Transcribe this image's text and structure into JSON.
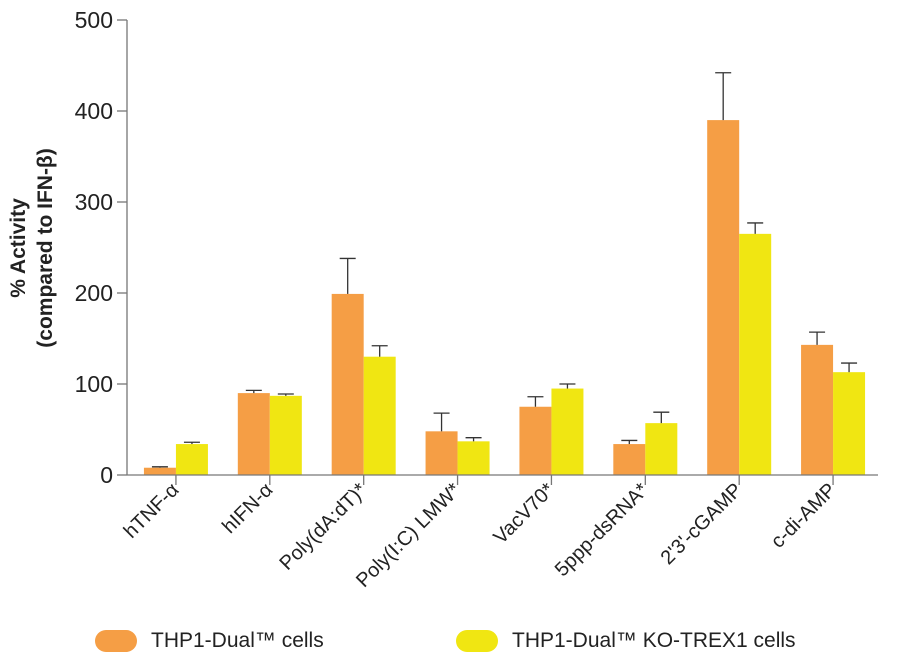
{
  "chart_data": {
    "type": "bar",
    "title": "",
    "ylabel_line1": "% Activity",
    "ylabel_line2": "(compared to IFN-β)",
    "xlabel": "",
    "ylim": [
      0,
      500
    ],
    "yticks": [
      0,
      100,
      200,
      300,
      400,
      500
    ],
    "grid": false,
    "legend_position": "bottom",
    "categories": [
      "hTNF-α",
      "hIFN-α",
      "Poly(dA:dT)*",
      "Poly(I:C) LMW*",
      "VacV70*",
      "5ppp-dsRNA*",
      "2'3'-cGAMP",
      "c-di-AMP"
    ],
    "series": [
      {
        "name": "THP1-Dual™ cells",
        "color": "#F59E45",
        "values": [
          8,
          90,
          199,
          48,
          75,
          34,
          390,
          143
        ],
        "error_upper": [
          9,
          93,
          238,
          68,
          86,
          38,
          442,
          157
        ]
      },
      {
        "name": "THP1-Dual™ KO-TREX1 cells",
        "color": "#F0E612",
        "values": [
          34,
          87,
          130,
          37,
          95,
          57,
          265,
          113
        ],
        "error_upper": [
          36,
          89,
          142,
          41,
          100,
          69,
          277,
          123
        ]
      }
    ]
  },
  "legend": {
    "items": [
      {
        "label": "THP1-Dual™ cells",
        "color": "#F59E45"
      },
      {
        "label": "THP1-Dual™ KO-TREX1 cells",
        "color": "#F0E612"
      }
    ]
  }
}
